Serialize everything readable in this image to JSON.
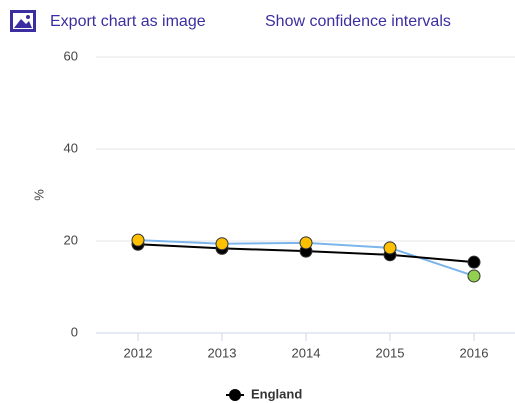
{
  "toolbar": {
    "export": "Export chart as image",
    "confidence": "Show confidence intervals"
  },
  "chart_data": {
    "type": "line",
    "y_label": "%",
    "categories": [
      "2012",
      "2013",
      "2014",
      "2015",
      "2016"
    ],
    "ylim": [
      0,
      60
    ],
    "yticks": [
      0,
      20,
      40,
      60
    ],
    "grid": true,
    "series": [
      {
        "name": "England",
        "color": "#000000",
        "marker_colors": [
          "#000000",
          "#000000",
          "#000000",
          "#000000",
          "#000000"
        ],
        "values": [
          19.3,
          18.4,
          17.8,
          17.0,
          15.4
        ]
      },
      {
        "color": "#7cb5ec",
        "marker_colors": [
          "#ffc000",
          "#ffc000",
          "#ffc000",
          "#ffc000",
          "#92d050"
        ],
        "values": [
          20.2,
          19.4,
          19.6,
          18.5,
          12.4
        ]
      }
    ]
  }
}
